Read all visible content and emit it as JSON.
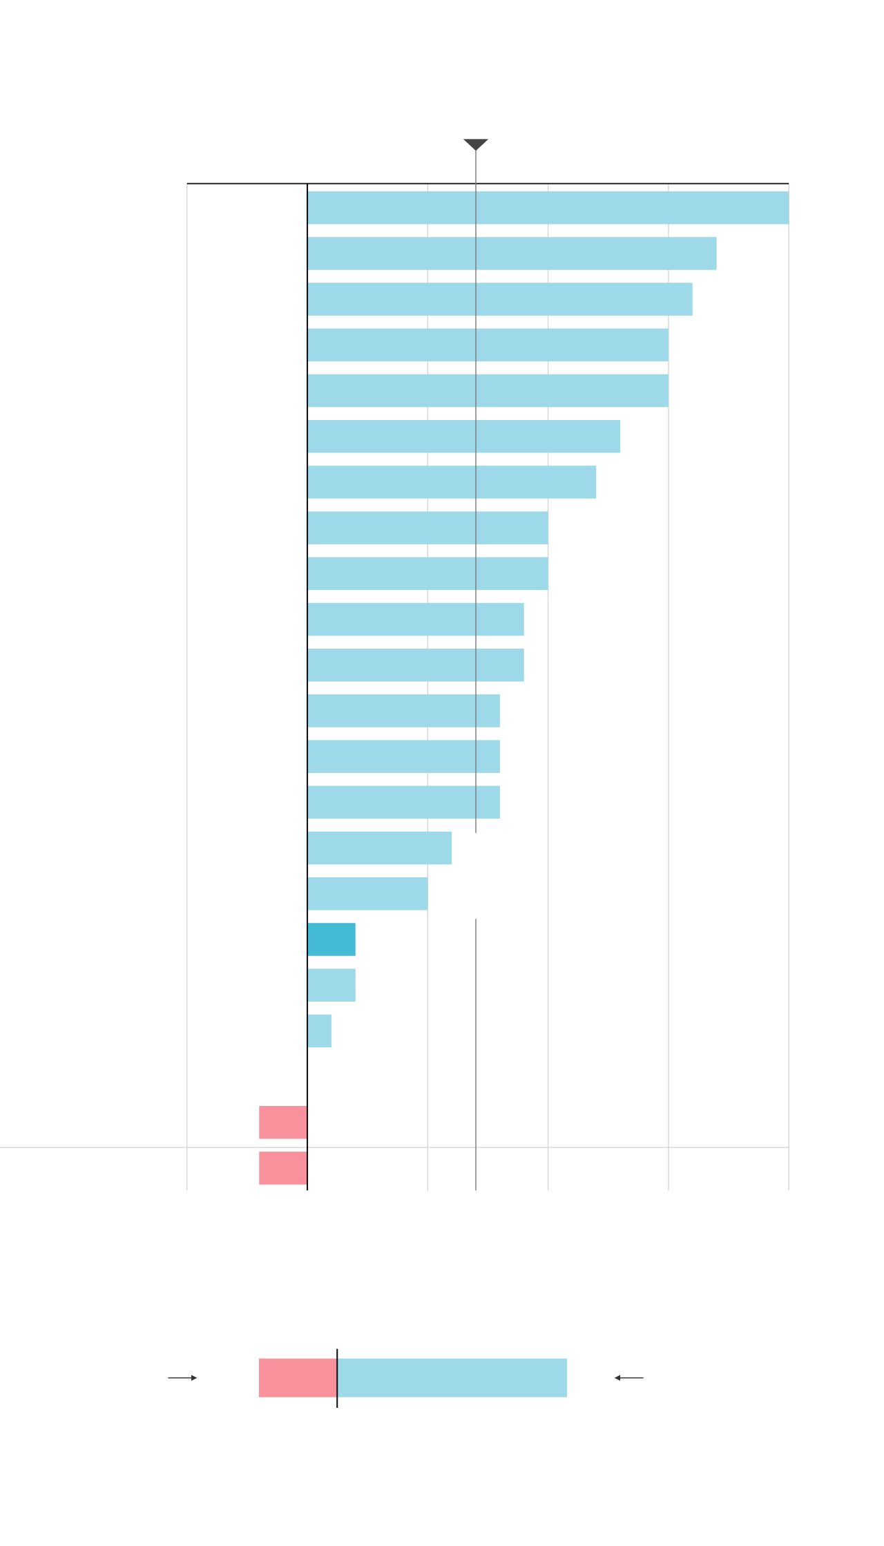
{
  "chart_data": {
    "type": "bar",
    "orientation": "horizontal",
    "categories": [
      null,
      null,
      null,
      null,
      null,
      null,
      null,
      null,
      null,
      null,
      null,
      null,
      null,
      null,
      null,
      null,
      null,
      null,
      null,
      null,
      null,
      null
    ],
    "values": [
      4,
      3.4,
      3.2,
      3,
      3,
      2.6,
      2.4,
      2,
      2,
      1.8,
      1.8,
      1.6,
      1.6,
      1.6,
      1.2,
      1,
      0.4,
      0.4,
      0.2,
      0,
      -0.4,
      -0.4
    ],
    "color": "#9dd9e8",
    "negative_color": "#f8919c",
    "highlight_color": "#45bad6",
    "highlight_index": 16,
    "xlim": [
      -1,
      4
    ],
    "xticks": [
      -1,
      0,
      1,
      2,
      3,
      4
    ],
    "grid": true,
    "reference": 1.4
  }
}
